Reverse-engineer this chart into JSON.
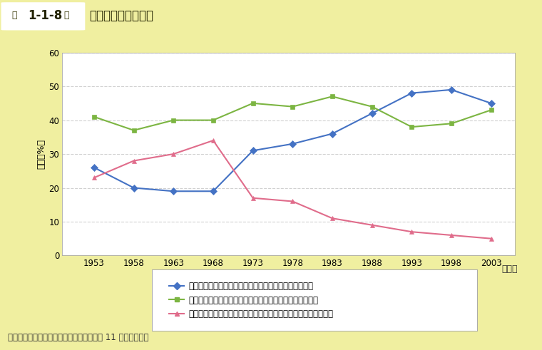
{
  "ylabel": "割合（%）",
  "xlabel": "（年）",
  "years": [
    1953,
    1958,
    1963,
    1968,
    1973,
    1978,
    1983,
    1988,
    1993,
    1998,
    2003
  ],
  "series": [
    {
      "label": "人間が幸福になるためには自然に従わなければならない",
      "values": [
        26,
        20,
        19,
        19,
        31,
        33,
        36,
        42,
        48,
        49,
        45
      ],
      "color": "#4472C4",
      "marker": "D"
    },
    {
      "label": "人間が幸福になるためには自然を利用しなければならない",
      "values": [
        41,
        37,
        40,
        40,
        45,
        44,
        47,
        44,
        38,
        39,
        43
      ],
      "color": "#7CB542",
      "marker": "s"
    },
    {
      "label": "人間が幸福になるためには自然を征服してゆかなければならない",
      "values": [
        23,
        28,
        30,
        34,
        17,
        16,
        11,
        9,
        7,
        6,
        5
      ],
      "color": "#E06C8B",
      "marker": "^"
    }
  ],
  "ylim": [
    0,
    60
  ],
  "yticks": [
    0,
    10,
    20,
    30,
    40,
    50,
    60
  ],
  "bg_color": "#F0EFA0",
  "plot_bg_color": "#FFFFFF",
  "grid_color": "#CCCCCC",
  "source": "資料：統計数理研究所「国民性の研究　第 11 次全国調査」",
  "header_bg": "#BFCE3A",
  "header_text_bold": "1-1-8",
  "header_prefix": "第",
  "header_suffix": "図",
  "header_title": "自然と人間との関係",
  "header_box_bg": "#FFFFFF",
  "header_box_text": "#4A4A00"
}
